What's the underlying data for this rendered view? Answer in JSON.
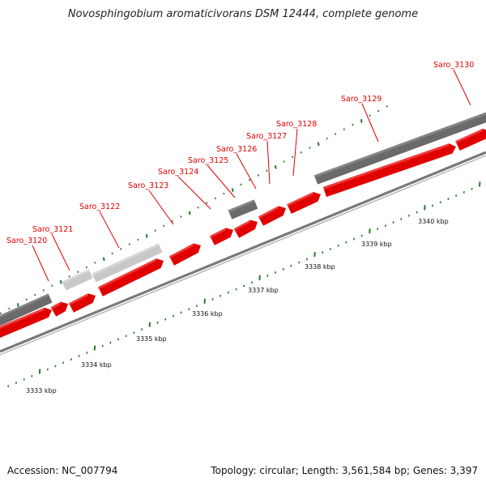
{
  "title": "Novosphingobium aromaticivorans DSM 12444, complete genome",
  "footer": {
    "accession": "Accession: NC_007794",
    "summary": "Topology: circular; Length: 3,561,584 bp; Genes: 3,397"
  },
  "colors": {
    "cds_forward": "#e00000",
    "pseudo_light": "#c8c8c8",
    "pseudo_dark": "#6a6a6a",
    "tick_mark": "#2a7a2a",
    "backbone": "#808080",
    "label_red": "#e00000"
  },
  "scale": {
    "unit": "kbp",
    "labels": [
      "3333 kbp",
      "3334 kbp",
      "3335 kbp",
      "3336 kbp",
      "3337 kbp",
      "3338 kbp",
      "3339 kbp",
      "3340 kbp"
    ]
  },
  "genes": [
    {
      "label": "Saro_3120"
    },
    {
      "label": "Saro_3121"
    },
    {
      "label": "Saro_3122"
    },
    {
      "label": "Saro_3123"
    },
    {
      "label": "Saro_3124"
    },
    {
      "label": "Saro_3125"
    },
    {
      "label": "Saro_3126"
    },
    {
      "label": "Saro_3127"
    },
    {
      "label": "Saro_3128"
    },
    {
      "label": "Saro_3129"
    },
    {
      "label": "Saro_3130"
    }
  ]
}
